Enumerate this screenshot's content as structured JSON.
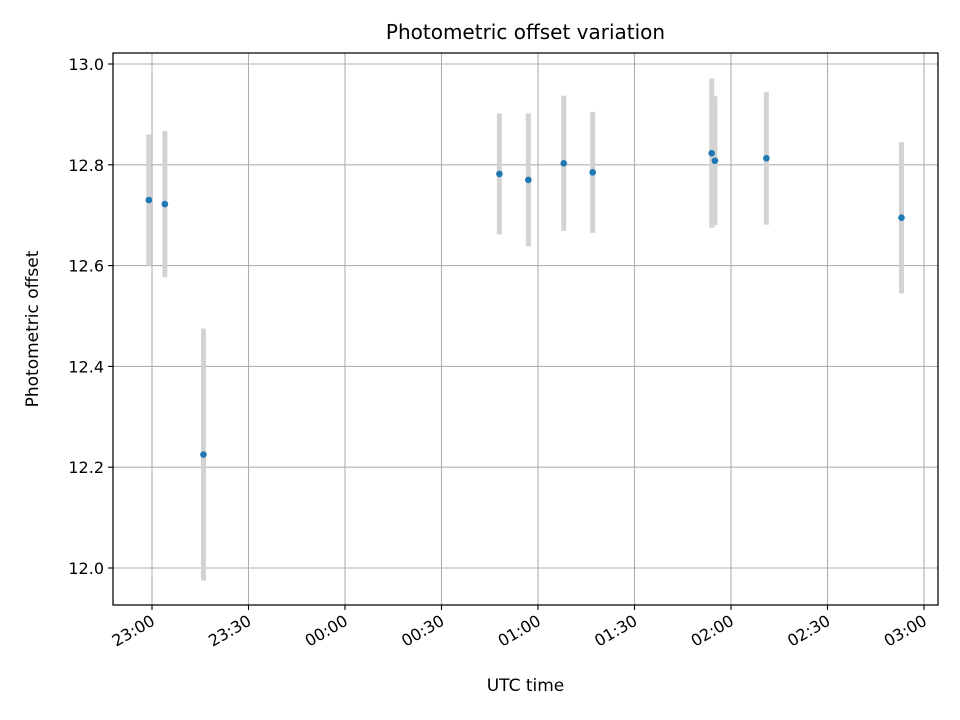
{
  "chart_data": {
    "type": "scatter",
    "title": "Photometric offset variation",
    "xlabel": "UTC time",
    "ylabel": "Photometric offset",
    "x_unit": "UTC time (HH:MM), 22:59 to 03:03 spanning midnight",
    "xlim": [
      "22:36",
      "03:00"
    ],
    "ylim": [
      11.925,
      13.02
    ],
    "grid": true,
    "legend": null,
    "x_ticks": [
      "23:00",
      "23:30",
      "00:00",
      "00:30",
      "01:00",
      "01:30",
      "02:00",
      "02:30",
      "03:00"
    ],
    "y_ticks": [
      "12.0",
      "12.2",
      "12.4",
      "12.6",
      "12.8",
      "13.0"
    ],
    "series": [
      {
        "marker_color": "#1f77b4",
        "errorbar_color": "#d3d3d3",
        "points": [
          {
            "time": "22:59",
            "y": 12.73,
            "yerr": 0.13
          },
          {
            "time": "23:04",
            "y": 12.722,
            "yerr": 0.145
          },
          {
            "time": "23:16",
            "y": 12.225,
            "yerr": 0.25
          },
          {
            "time": "00:48",
            "y": 12.782,
            "yerr": 0.12
          },
          {
            "time": "00:57",
            "y": 12.77,
            "yerr": 0.132
          },
          {
            "time": "01:08",
            "y": 12.803,
            "yerr": 0.134
          },
          {
            "time": "01:17",
            "y": 12.785,
            "yerr": 0.12
          },
          {
            "time": "01:54",
            "y": 12.823,
            "yerr": 0.148
          },
          {
            "time": "01:55",
            "y": 12.808,
            "yerr": 0.128
          },
          {
            "time": "02:11",
            "y": 12.813,
            "yerr": 0.132
          },
          {
            "time": "02:53",
            "y": 12.695,
            "yerr": 0.15
          }
        ]
      }
    ]
  }
}
